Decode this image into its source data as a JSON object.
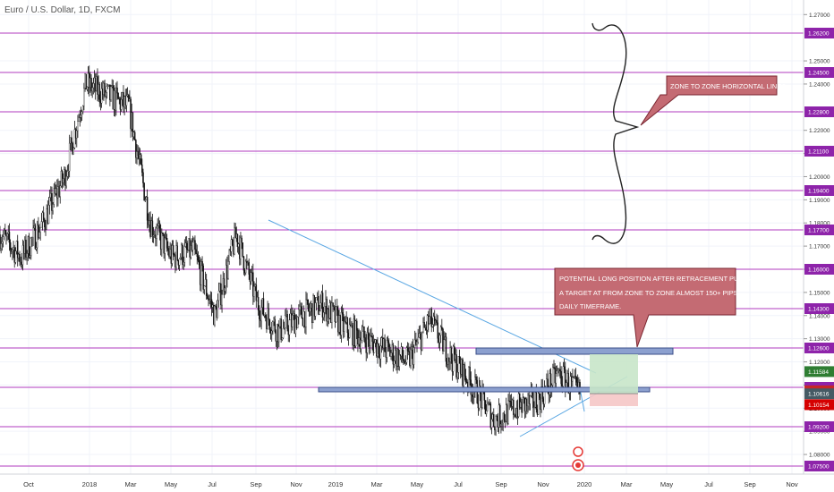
{
  "symbol_title": "Euro / U.S. Dollar, 1D, FXCM",
  "colors": {
    "zone_line": "#b23bbf",
    "trend_line": "#5aa7e3",
    "candle": "#111111",
    "price_tag_default": "#8e24aa",
    "callout_fill": "#c46b73",
    "target_fill": "#c8e6c9",
    "stop_fill": "#f5c6c6",
    "zone_box": "#8ca0cf"
  },
  "chart_data": {
    "type": "candlestick",
    "x_ticks": [
      "Oct",
      "2018",
      "Mar",
      "May",
      "Jul",
      "Sep",
      "Nov",
      "2019",
      "Mar",
      "May",
      "Jul",
      "Sep",
      "Nov",
      "2020",
      "Mar",
      "May",
      "Jul",
      "Sep",
      "Nov"
    ],
    "y_ticks": [
      "1.27000",
      "1.25000",
      "1.24000",
      "1.22000",
      "1.21000",
      "1.20000",
      "1.19000",
      "1.18000",
      "1.17000",
      "1.16000",
      "1.15000",
      "1.14000",
      "1.13000",
      "1.12000",
      "1.11000",
      "1.10000",
      "1.09000",
      "1.08000"
    ],
    "ylim": [
      1.075,
      1.2735
    ],
    "horizontal_levels": [
      "1.26200",
      "1.24500",
      "1.22800",
      "1.21100",
      "1.19400",
      "1.17700",
      "1.16000",
      "1.14300",
      "1.12600",
      "1.10900",
      "1.09200",
      "1.07500"
    ],
    "price_tags": [
      {
        "label": "1.11584",
        "color": "#2e7d32",
        "value": 1.1158
      },
      {
        "label": "1.10753",
        "color": "#c62828",
        "value": 1.1075
      },
      {
        "label": "1.10616",
        "color": "#455a64",
        "value": 1.1062
      },
      {
        "label": "1.10154",
        "color": "#d50000",
        "value": 1.1015
      }
    ],
    "price_path_description_points": [
      {
        "x": "Oct 2017",
        "y": 1.175
      },
      {
        "x": "Nov 2017",
        "y": 1.165
      },
      {
        "x": "Dec 2017",
        "y": 1.18
      },
      {
        "x": "2018",
        "y": 1.2
      },
      {
        "x": "Feb 2018",
        "y": 1.24
      },
      {
        "x": "Mar 2018",
        "y": 1.235
      },
      {
        "x": "Apr 2018",
        "y": 1.23
      },
      {
        "x": "May 2018",
        "y": 1.18
      },
      {
        "x": "Jun 2018",
        "y": 1.165
      },
      {
        "x": "Jul 2018",
        "y": 1.168
      },
      {
        "x": "Aug 2018",
        "y": 1.14
      },
      {
        "x": "Sep 2018",
        "y": 1.175
      },
      {
        "x": "Oct 2018",
        "y": 1.145
      },
      {
        "x": "Nov 2018",
        "y": 1.133
      },
      {
        "x": "Dec 2018",
        "y": 1.14
      },
      {
        "x": "2019",
        "y": 1.145
      },
      {
        "x": "Feb 2019",
        "y": 1.135
      },
      {
        "x": "Mar 2019",
        "y": 1.13
      },
      {
        "x": "Apr 2019",
        "y": 1.125
      },
      {
        "x": "May 2019",
        "y": 1.12
      },
      {
        "x": "Jun 2019",
        "y": 1.138
      },
      {
        "x": "Jul 2019",
        "y": 1.122
      },
      {
        "x": "Aug 2019",
        "y": 1.11
      },
      {
        "x": "Sep 2019",
        "y": 1.095
      },
      {
        "x": "Oct 2019",
        "y": 1.1
      },
      {
        "x": "Nov 2019",
        "y": 1.103
      },
      {
        "x": "Dec 2019",
        "y": 1.115
      },
      {
        "x": "Dec 2019 end",
        "y": 1.106
      }
    ],
    "annotations": {
      "zone_callout": "ZONE TO ZONE HORIZONTAL LINES.",
      "position_callout": [
        "POTENTIAL LONG POSITION AFTER RETRACEMENT PULLBACK",
        "A TARGET AT FROM ZONE TO ZONE ALMOST 150+ PIPS.",
        "DAILY TIMEFRAME."
      ]
    }
  }
}
